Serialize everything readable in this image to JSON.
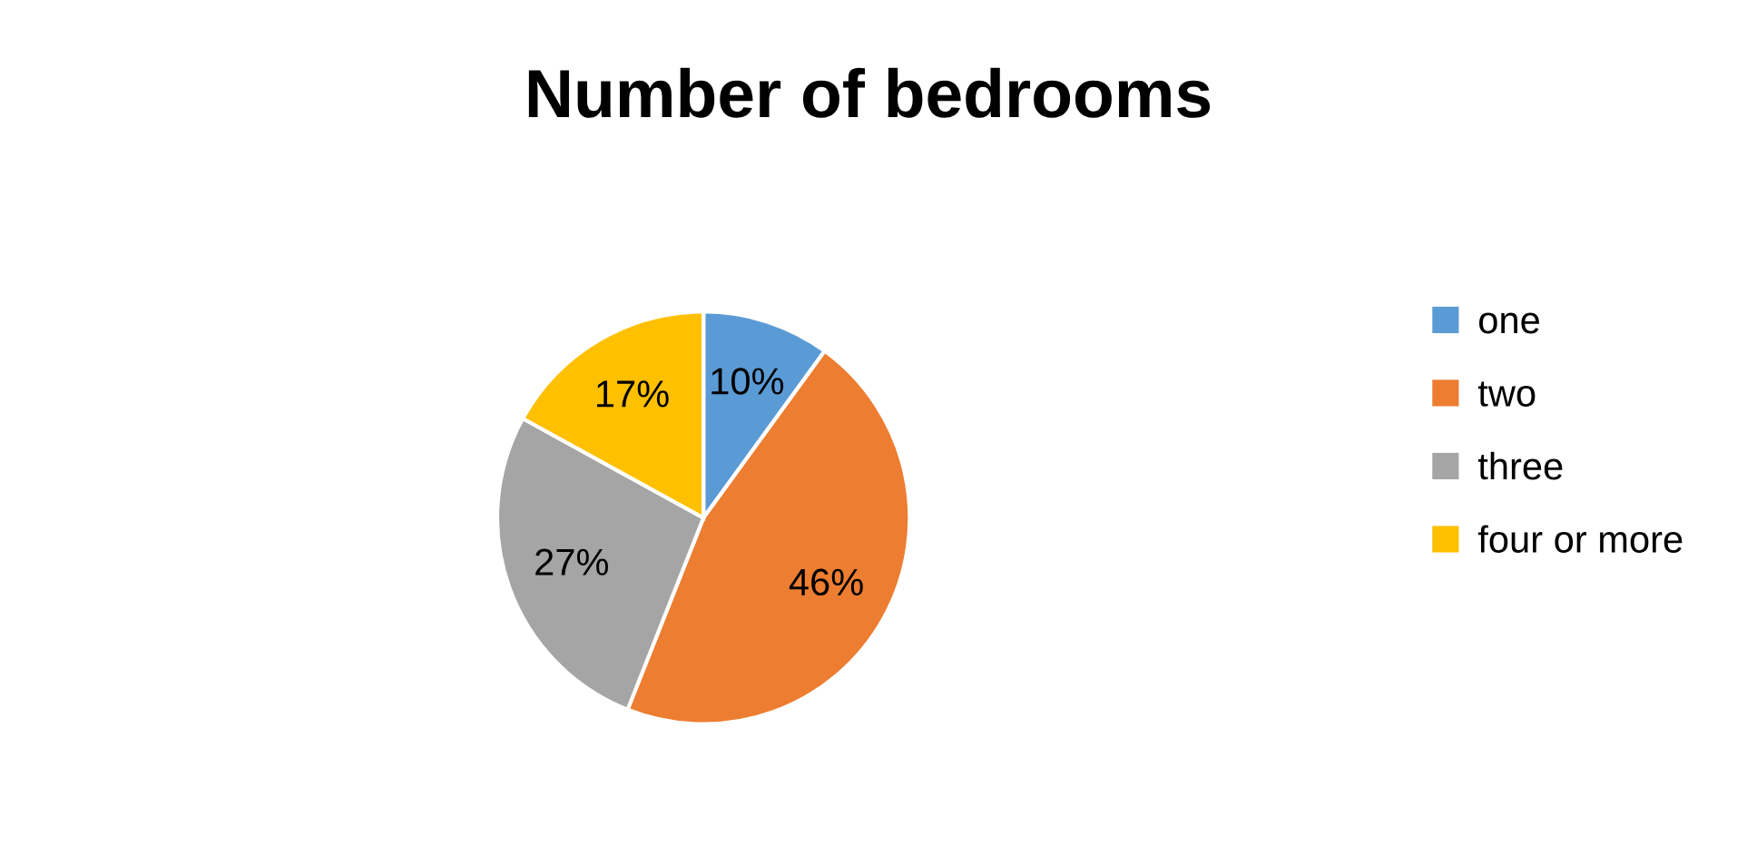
{
  "chart_data": {
    "type": "pie",
    "title": "Number of bedrooms",
    "categories": [
      "one",
      "two",
      "three",
      "four or more"
    ],
    "values": [
      10,
      46,
      27,
      17
    ],
    "colors": [
      "#5b9bd5",
      "#ed7d31",
      "#a5a5a5",
      "#ffc000"
    ],
    "value_labels": [
      "10%",
      "46%",
      "27%",
      "17%"
    ],
    "legend": "right"
  }
}
